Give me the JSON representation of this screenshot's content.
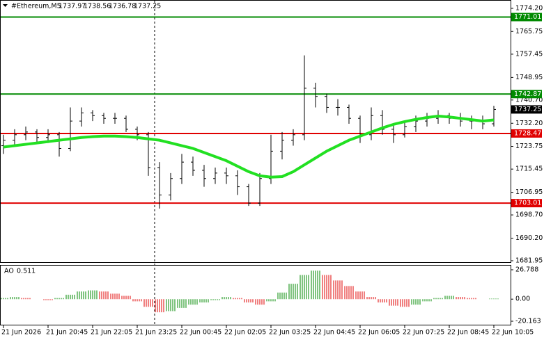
{
  "chart_data": {
    "type": "ohlc",
    "symbol": "#Ethereum,M5",
    "ohlc": [
      1737.97,
      1738.56,
      1736.78,
      1737.25
    ],
    "categories": [
      "21 Jun 2026",
      null,
      null,
      null,
      "21 Jun 20:45",
      null,
      null,
      null,
      "21 Jun 22:05",
      null,
      null,
      null,
      "21 Jun 23:25",
      null,
      null,
      null,
      "22 Jun 00:45",
      null,
      null,
      null,
      "22 Jun 02:05",
      null,
      null,
      null,
      "22 Jun 03:25",
      null,
      null,
      null,
      "22 Jun 04:45",
      null,
      null,
      null,
      "22 Jun 06:05",
      null,
      null,
      null,
      "22 Jun 07:25",
      null,
      null,
      null,
      "22 Jun 08:45",
      null,
      null,
      null,
      "22 Jun 10:05"
    ],
    "open": [
      1724,
      1726,
      1728,
      1729,
      1727,
      1728,
      1723,
      1733,
      1736,
      1735,
      1734,
      1734,
      1730,
      1728,
      1716,
      1706,
      1712,
      1718,
      1715,
      1712,
      1714,
      1713,
      1709,
      1703,
      1712,
      1722,
      1726,
      1728,
      1745,
      1742,
      1738,
      1738,
      1734,
      1728,
      1735,
      1730,
      1728,
      1731,
      1733,
      1734,
      1735,
      1734,
      1733,
      1733,
      1732
    ],
    "high": [
      1728,
      1730,
      1731,
      1730,
      1730,
      1729,
      1738,
      1738,
      1737,
      1736,
      1736,
      1735,
      1731,
      1729,
      1718,
      1714,
      1721,
      1720,
      1717,
      1716,
      1716,
      1715,
      1710,
      1714,
      1728,
      1729,
      1730,
      1757,
      1747,
      1743,
      1741,
      1739,
      1735,
      1738,
      1737,
      1732,
      1733,
      1735,
      1736,
      1737,
      1736,
      1736,
      1735,
      1735,
      1738.56
    ],
    "low": [
      1721,
      1724,
      1726,
      1725,
      1725,
      1720,
      1722,
      1731,
      1733,
      1732,
      1732,
      1729,
      1726,
      1713,
      1701,
      1704,
      1710,
      1713,
      1709,
      1710,
      1710,
      1706,
      1702,
      1702,
      1710,
      1719,
      1724,
      1726,
      1738,
      1736,
      1735,
      1732,
      1725,
      1726,
      1728,
      1725,
      1727,
      1729,
      1731,
      1732,
      1732,
      1731,
      1730,
      1730,
      1731
    ],
    "close": [
      1726,
      1728,
      1729,
      1727,
      1728,
      1723,
      1733,
      1736,
      1735,
      1734,
      1734,
      1730,
      1728,
      1716,
      1706,
      1712,
      1718,
      1715,
      1712,
      1714,
      1713,
      1709,
      1703,
      1712,
      1722,
      1726,
      1728,
      1745,
      1742,
      1738,
      1738,
      1734,
      1728,
      1735,
      1730,
      1728,
      1731,
      1733,
      1734,
      1735,
      1734,
      1733,
      1733,
      1732,
      1737.25
    ],
    "bar_color": "#000000",
    "ma": {
      "color": "#22e022",
      "values": [
        1723.5,
        1724,
        1724.5,
        1725,
        1725.5,
        1726,
        1726.5,
        1727,
        1727.3,
        1727.5,
        1727.5,
        1727.3,
        1727,
        1726.5,
        1726,
        1725,
        1724,
        1723,
        1721.5,
        1720,
        1718.5,
        1716.5,
        1714.5,
        1713,
        1712.5,
        1712.7,
        1714.5,
        1717,
        1719.5,
        1722,
        1724,
        1726,
        1727.5,
        1729,
        1730.5,
        1731.8,
        1732.8,
        1733.6,
        1734.3,
        1734.8,
        1734.5,
        1734,
        1733.5,
        1733,
        1733.4
      ]
    },
    "ylim": [
      1681.19,
      1777.25
    ],
    "yticks": [
      {
        "value": 1774.2,
        "label": "1774.20"
      },
      {
        "value": 1765.75,
        "label": "1765.75"
      },
      {
        "value": 1757.45,
        "label": "1757.45"
      },
      {
        "value": 1748.95,
        "label": "1748.95"
      },
      {
        "value": 1740.7,
        "label": "1740.70"
      },
      {
        "value": 1732.2,
        "label": "1732.20"
      },
      {
        "value": 1723.75,
        "label": "1723.75"
      },
      {
        "value": 1715.45,
        "label": "1715.45"
      },
      {
        "value": 1706.95,
        "label": "1706.95"
      },
      {
        "value": 1698.7,
        "label": "1698.70"
      },
      {
        "value": 1690.2,
        "label": "1690.20"
      },
      {
        "value": 1681.95,
        "label": "1681.95"
      }
    ],
    "levels": [
      {
        "value": 1771.01,
        "color": "#008a00"
      },
      {
        "value": 1742.87,
        "color": "#008a00"
      },
      {
        "value": 1728.47,
        "color": "#e00000"
      },
      {
        "value": 1703.01,
        "color": "#e00000"
      }
    ],
    "ao": {
      "label": "AO",
      "up_color": "#008a00",
      "down_color": "#e00000",
      "values": [
        1,
        2,
        1,
        0,
        -1,
        1,
        4,
        7,
        8,
        7,
        5,
        3,
        -2,
        -7,
        -12,
        -11,
        -8,
        -5,
        -3,
        -1,
        2,
        1,
        -3,
        -5,
        -2,
        6,
        14,
        22,
        26,
        22,
        17,
        12,
        7,
        2,
        -3,
        -6,
        -7,
        -5,
        -2,
        1,
        3,
        2,
        1,
        0,
        0.511
      ],
      "ylim": [
        -23.97,
        30.6
      ],
      "yticks": [
        26.788,
        {
          "value": 0,
          "label": "0.00"
        },
        -20.163
      ]
    }
  }
}
